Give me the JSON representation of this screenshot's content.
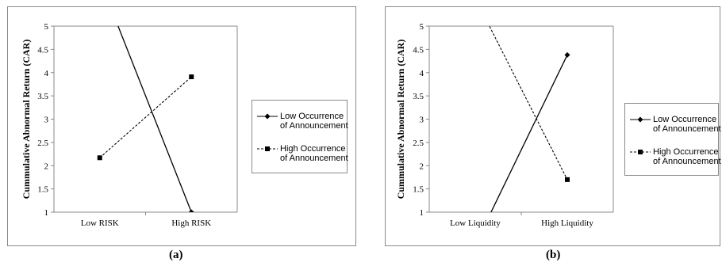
{
  "chart_data": [
    {
      "type": "line",
      "panel_label": "(a)",
      "title": "",
      "xlabel": "",
      "ylabel": "Cummulative Abnormal Return (CAR)",
      "categories": [
        "Low RISK",
        "High RISK"
      ],
      "ylim": [
        1,
        5
      ],
      "yticks": [
        "1",
        "1.5",
        "2",
        "2.5",
        "3",
        "3.5",
        "4",
        "4.5",
        "5"
      ],
      "grid": false,
      "legend_position": "right",
      "series": [
        {
          "name": "Low Occurrence of Announcement",
          "legend_lines": [
            "Low Occurrence",
            "of Announcement"
          ],
          "values": [
            6.0,
            1.0
          ],
          "marker": "diamond",
          "dash": "solid"
        },
        {
          "name": "High Occurrence of Announcement",
          "legend_lines": [
            "High Occurrence",
            "of Announcement"
          ],
          "values": [
            2.17,
            3.91
          ],
          "marker": "square",
          "dash": "dashed"
        }
      ]
    },
    {
      "type": "line",
      "panel_label": "(b)",
      "title": "",
      "xlabel": "",
      "ylabel": "Cummulative Abnormal Return (CAR)",
      "categories": [
        "Low Liquidity",
        "High Liquidity"
      ],
      "ylim": [
        1,
        5
      ],
      "yticks": [
        "1",
        "1.5",
        "2",
        "2.5",
        "3",
        "3.5",
        "4",
        "4.5",
        "5"
      ],
      "grid": false,
      "legend_position": "right",
      "series": [
        {
          "name": "Low Occurrence of Announcement",
          "legend_lines": [
            "Low Occurrence",
            "of Announcement"
          ],
          "values": [
            0.3,
            4.38
          ],
          "marker": "diamond",
          "dash": "solid"
        },
        {
          "name": "High Occurrence of Announcement",
          "legend_lines": [
            "High Occurrence",
            "of Announcement"
          ],
          "values": [
            5.6,
            1.7
          ],
          "marker": "square",
          "dash": "dashed"
        }
      ]
    }
  ]
}
